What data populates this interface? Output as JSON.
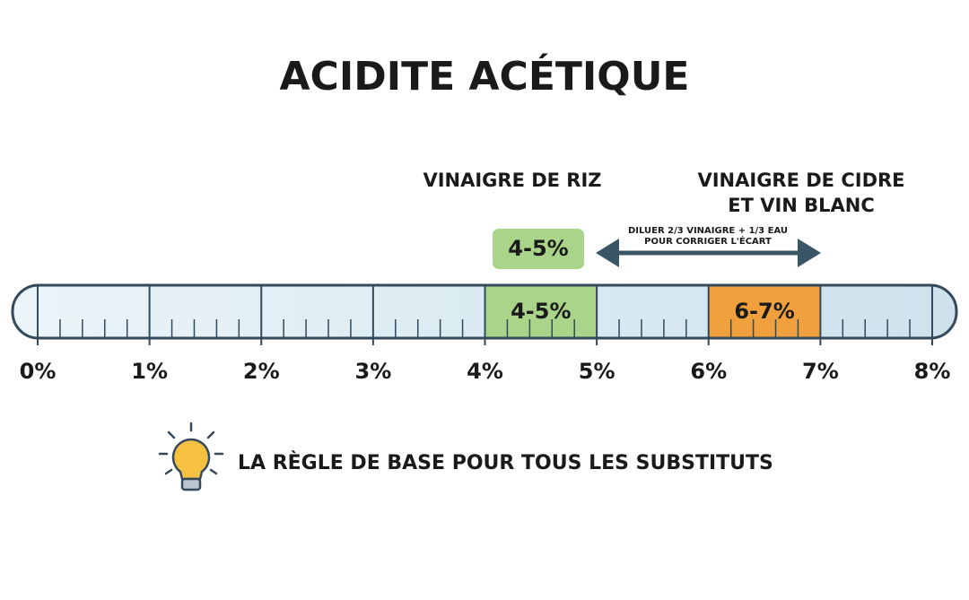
{
  "title": "ACIDITE ACÉTIQUE",
  "scale": {
    "labels": [
      "0%",
      "1%",
      "2%",
      "3%",
      "4%",
      "5%",
      "6%",
      "7%",
      "8%"
    ]
  },
  "ranges": [
    {
      "name": [
        "VINAIGRE DE RIZ"
      ],
      "label": "4-5%",
      "color": "#a9d48a",
      "badge": "4-5%"
    },
    {
      "name": [
        "VINAIGRE DE CIDRE",
        "ET VIN BLANC"
      ],
      "label": "6-7%",
      "color": "#f0a03c"
    }
  ],
  "note": [
    "DILUER 2/3 VINAIGRE + 1/3 EAU",
    "POUR CORRIGER L'ÉCART"
  ],
  "footer": "LA RÈGLE DE BASE POUR TOUS LES SUBSTITUTS"
}
